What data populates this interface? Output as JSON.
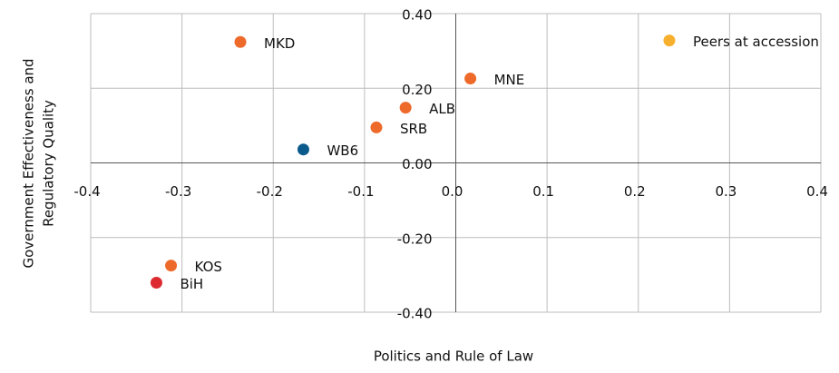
{
  "chart_data": {
    "type": "scatter",
    "xlabel": "Politics and Rule of Law",
    "ylabel": [
      "Government Effectiveness and",
      "Regulatory Quality"
    ],
    "xlim": [
      -0.4,
      0.4
    ],
    "ylim": [
      -0.4,
      0.4
    ],
    "xticks": [
      -0.4,
      -0.3,
      -0.2,
      -0.1,
      {
        "value": 0,
        "label": "0.0"
      },
      0.1,
      0.2,
      0.3,
      0.4
    ],
    "yticks": [
      {
        "value": 0.4,
        "label": "0.40"
      },
      {
        "value": 0.2,
        "label": "0.20"
      },
      {
        "value": 0,
        "label": "0.00"
      },
      {
        "value": -0.2,
        "label": "-0.20"
      },
      {
        "value": -0.4,
        "label": "-0.40"
      }
    ],
    "grid": true,
    "points": [
      {
        "label": "MKD",
        "x": -0.236,
        "y": 0.324,
        "color": "#ee6a2a"
      },
      {
        "label": "MNE",
        "x": 0.016,
        "y": 0.226,
        "color": "#ee6a2a"
      },
      {
        "label": "ALB",
        "x": -0.055,
        "y": 0.148,
        "color": "#ee6a2a"
      },
      {
        "label": "SRB",
        "x": -0.087,
        "y": 0.095,
        "color": "#ee6a2a"
      },
      {
        "label": "WB6",
        "x": -0.167,
        "y": 0.036,
        "color": "#0b5a8c"
      },
      {
        "label": "Peers at accession",
        "x": 0.234,
        "y": 0.328,
        "color": "#f7b02e"
      },
      {
        "label": "KOS",
        "x": -0.312,
        "y": -0.275,
        "color": "#ee6a2a"
      },
      {
        "label": "BiH",
        "x": -0.328,
        "y": -0.321,
        "color": "#dd2a2f"
      }
    ]
  }
}
